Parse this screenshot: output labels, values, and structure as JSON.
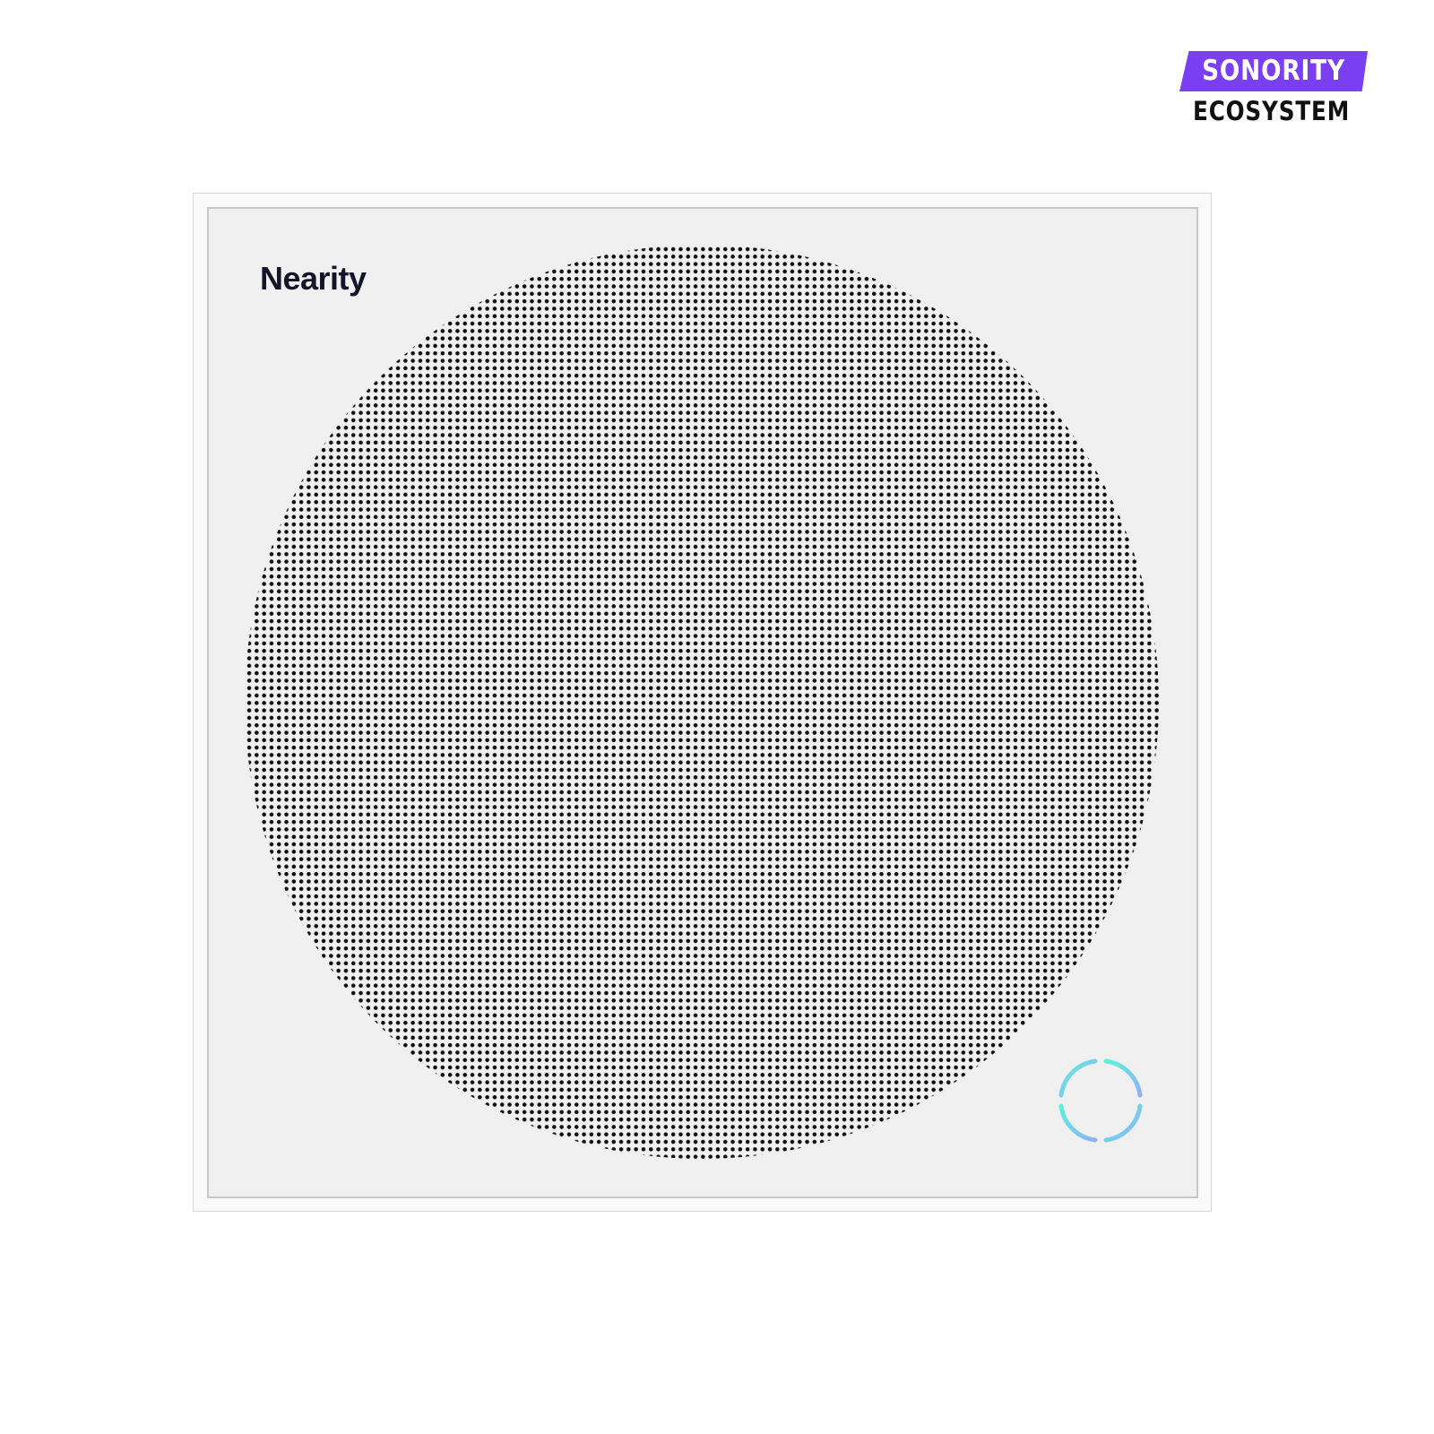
{
  "badge": {
    "top": "SONORITY",
    "bottom": "ECOSYSTEM",
    "color": "#7b3ff2"
  },
  "product": {
    "brand": "Nearity",
    "grille_dot_color": "#111111",
    "panel_color": "#f0f0f0",
    "indicator_ring_colors": [
      "#5ff0dc",
      "#8fb8f8"
    ]
  }
}
